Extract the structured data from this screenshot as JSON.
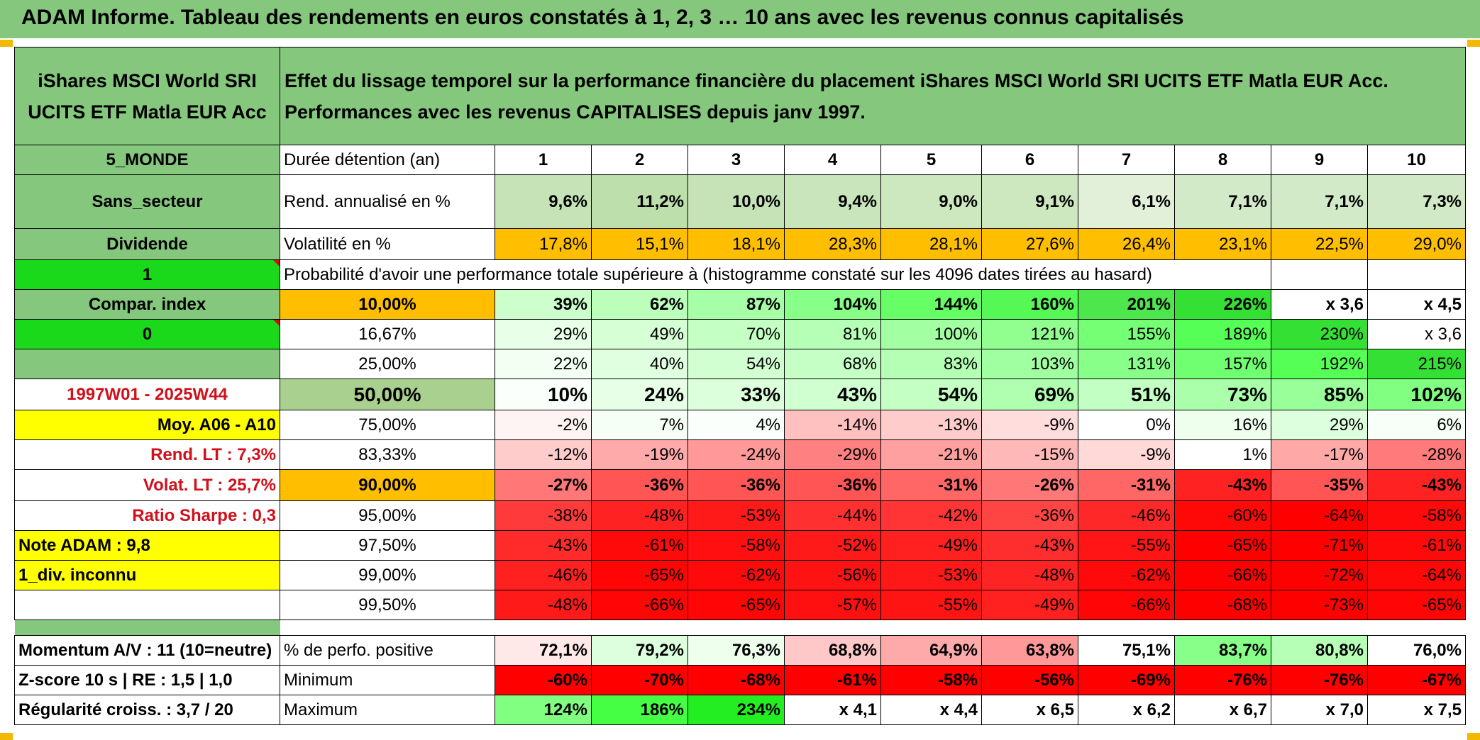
{
  "title": "ADAM Informe. Tableau des rendements en euros constatés à 1, 2, 3 … 10 ans avec les revenus connus capitalisés",
  "colors": {
    "title_bar": "#84c77d",
    "label_green": "#84c77d",
    "bright_green": "#1ad81a",
    "yellow": "#ffff00",
    "orange": "#ffbf00",
    "red": "#ff1010"
  },
  "header": {
    "fund_name_line1": "iShares MSCI World SRI",
    "fund_name_line2": "UCITS ETF Matla EUR Acc",
    "desc_line1": "Effet du lissage temporel sur la performance financière du placement iShares MSCI World SRI UCITS ETF Matla EUR Acc.",
    "desc_line2": "Performances avec les revenus CAPITALISES depuis janv 1997."
  },
  "left_labels": {
    "region": "5_MONDE",
    "sector": "Sans_secteur",
    "dividend": "Dividende",
    "one": "1",
    "compar_index": "Compar. index",
    "zero": "0",
    "period": "1997W01 - 2025W44",
    "moy": "Moy. A06 - A10",
    "rend_lt": "Rend. LT :   7,3%",
    "volat_lt": "Volat. LT :   25,7%",
    "sharpe": "Ratio Sharpe :   0,3",
    "note_adam": "Note ADAM : 9,8",
    "div_inconnu": "1_div. inconnu",
    "momentum": "Momentum A/V : 11 (10=neutre)",
    "zscore": "Z-score 10 s | RE : 1,5 | 1,0",
    "regularite": "Régularité croiss. : 3,7 / 20"
  },
  "row_labels": {
    "duree": "Durée détention (an)",
    "rend": "Rend. annualisé en %",
    "volat": "Volatilité en %",
    "proba": "Probabilité d'avoir une performance totale supérieure à (histogramme constaté sur les 4096 dates tirées au hasard)",
    "pct_positive": "% de perfo. positive",
    "minimum": "Minimum",
    "maximum": "Maximum"
  },
  "years": [
    "1",
    "2",
    "3",
    "4",
    "5",
    "6",
    "7",
    "8",
    "9",
    "10"
  ],
  "rend": [
    "9,6%",
    "11,2%",
    "10,0%",
    "9,4%",
    "9,0%",
    "9,1%",
    "6,1%",
    "7,1%",
    "7,1%",
    "7,3%"
  ],
  "volat": [
    "17,8%",
    "15,1%",
    "18,1%",
    "28,3%",
    "28,1%",
    "27,6%",
    "26,4%",
    "23,1%",
    "22,5%",
    "29,0%"
  ],
  "quantiles": [
    {
      "label": "10,00%",
      "values": [
        "39%",
        "62%",
        "87%",
        "104%",
        "144%",
        "160%",
        "201%",
        "226%",
        "x 3,6",
        "x 4,5"
      ]
    },
    {
      "label": "16,67%",
      "values": [
        "29%",
        "49%",
        "70%",
        "81%",
        "100%",
        "121%",
        "155%",
        "189%",
        "230%",
        "x 3,6"
      ]
    },
    {
      "label": "25,00%",
      "values": [
        "22%",
        "40%",
        "54%",
        "68%",
        "83%",
        "103%",
        "131%",
        "157%",
        "192%",
        "215%"
      ]
    },
    {
      "label": "50,00%",
      "values": [
        "10%",
        "24%",
        "33%",
        "43%",
        "54%",
        "69%",
        "51%",
        "73%",
        "85%",
        "102%"
      ]
    },
    {
      "label": "75,00%",
      "values": [
        "-2%",
        "7%",
        "4%",
        "-14%",
        "-13%",
        "-9%",
        "0%",
        "16%",
        "29%",
        "6%"
      ]
    },
    {
      "label": "83,33%",
      "values": [
        "-12%",
        "-19%",
        "-24%",
        "-29%",
        "-21%",
        "-15%",
        "-9%",
        "1%",
        "-17%",
        "-28%"
      ]
    },
    {
      "label": "90,00%",
      "values": [
        "-27%",
        "-36%",
        "-36%",
        "-36%",
        "-31%",
        "-26%",
        "-31%",
        "-43%",
        "-35%",
        "-43%"
      ]
    },
    {
      "label": "95,00%",
      "values": [
        "-38%",
        "-48%",
        "-53%",
        "-44%",
        "-42%",
        "-36%",
        "-46%",
        "-60%",
        "-64%",
        "-58%"
      ]
    },
    {
      "label": "97,50%",
      "values": [
        "-43%",
        "-61%",
        "-58%",
        "-52%",
        "-49%",
        "-43%",
        "-55%",
        "-65%",
        "-71%",
        "-61%"
      ]
    },
    {
      "label": "99,00%",
      "values": [
        "-46%",
        "-65%",
        "-62%",
        "-56%",
        "-53%",
        "-48%",
        "-62%",
        "-66%",
        "-72%",
        "-64%"
      ]
    },
    {
      "label": "99,50%",
      "values": [
        "-48%",
        "-66%",
        "-65%",
        "-57%",
        "-55%",
        "-49%",
        "-66%",
        "-68%",
        "-73%",
        "-65%"
      ]
    }
  ],
  "pct_positive": [
    "72,1%",
    "79,2%",
    "76,3%",
    "68,8%",
    "64,9%",
    "63,8%",
    "75,1%",
    "83,7%",
    "80,8%",
    "76,0%"
  ],
  "minimum": [
    "-60%",
    "-70%",
    "-68%",
    "-61%",
    "-58%",
    "-56%",
    "-69%",
    "-76%",
    "-76%",
    "-67%"
  ],
  "maximum": [
    "124%",
    "186%",
    "234%",
    "x 4,1",
    "x 4,4",
    "x 6,5",
    "x 6,2",
    "x 6,7",
    "x 7,0",
    "x 7,5"
  ]
}
